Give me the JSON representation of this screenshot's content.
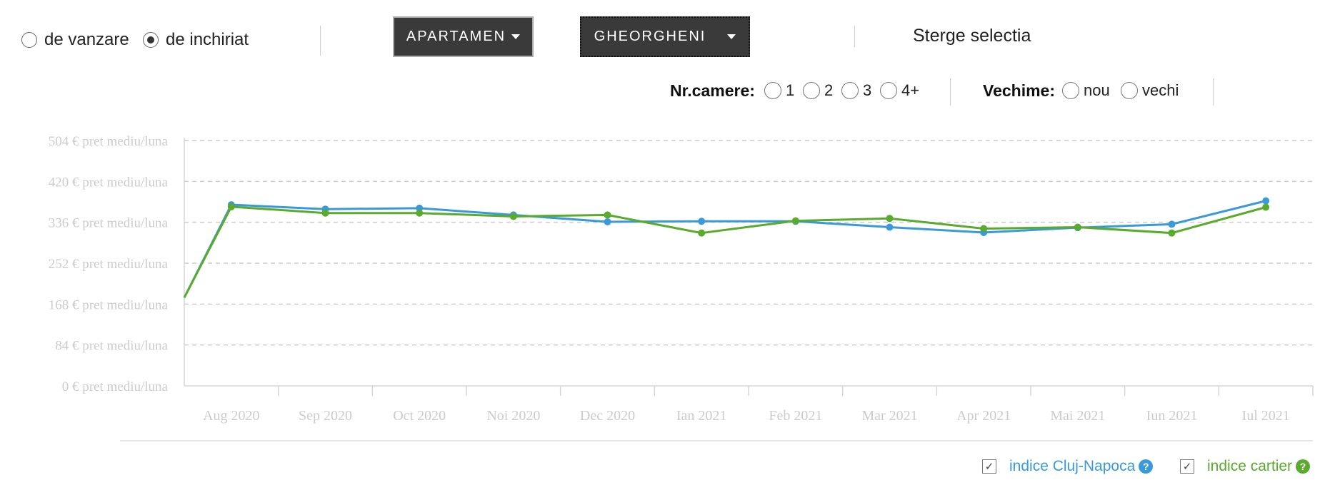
{
  "listing_type": {
    "options": [
      {
        "label": "de vanzare",
        "selected": false
      },
      {
        "label": "de inchiriat",
        "selected": true
      }
    ]
  },
  "property_dropdown": {
    "label": "APARTAMEN"
  },
  "area_dropdown": {
    "label": "GHEORGHENI"
  },
  "clear_label": "Sterge selectia",
  "filters": {
    "rooms_label": "Nr.camere:",
    "rooms": [
      "1",
      "2",
      "3",
      "4+"
    ],
    "age_label": "Vechime:",
    "age": [
      "nou",
      "vechi"
    ]
  },
  "legend": {
    "city_label": "indice Cluj-Napoca",
    "district_label": "indice cartier",
    "help_glyph": "?",
    "check_glyph": "✓"
  },
  "colors": {
    "city": "#3a9ad9",
    "district": "#5aaa2e",
    "grid": "#cccccc",
    "axis_text": "#cccccc"
  },
  "chart_data": {
    "type": "line",
    "categories": [
      "Aug 2020",
      "Sep 2020",
      "Oct 2020",
      "Noi 2020",
      "Dec 2020",
      "Ian 2021",
      "Feb 2021",
      "Mar 2021",
      "Apr 2021",
      "Mai 2021",
      "Iun 2021",
      "Iul 2021"
    ],
    "y_ticks": [
      0,
      84,
      168,
      252,
      336,
      420,
      504
    ],
    "y_tick_suffix": " € pret mediu/luna",
    "ylim": [
      0,
      504
    ],
    "grid": true,
    "series": [
      {
        "name": "indice Cluj-Napoca",
        "color": "#3a9ad9",
        "values": [
          372,
          363,
          365,
          351,
          337,
          338,
          338,
          326,
          315,
          325,
          332,
          380
        ]
      },
      {
        "name": "indice cartier",
        "color": "#5aaa2e",
        "values": [
          368,
          355,
          355,
          348,
          351,
          314,
          339,
          344,
          323,
          326,
          314,
          367
        ]
      }
    ]
  }
}
